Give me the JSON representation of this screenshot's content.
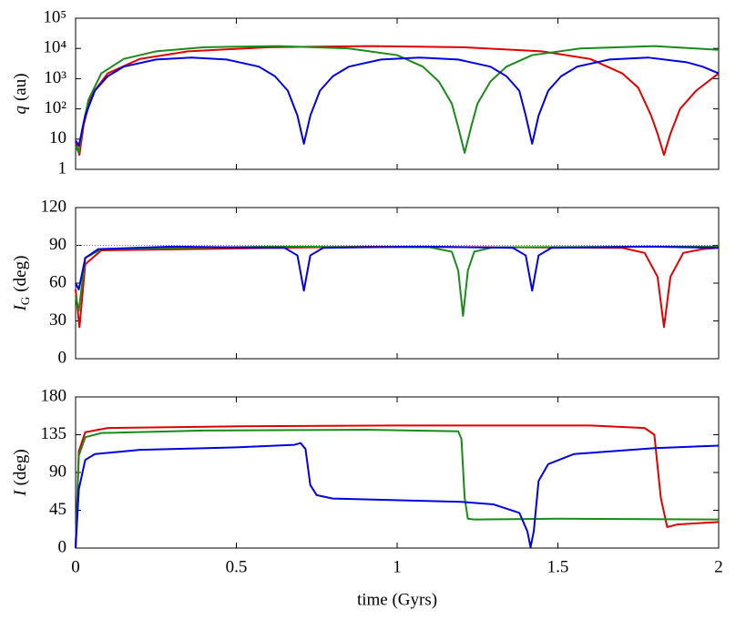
{
  "chart_data": [
    {
      "type": "line",
      "log_y": true,
      "ylabel": {
        "symbol": "q",
        "unit": "(au)"
      },
      "ylim": [
        1,
        100000
      ],
      "yticks": [
        1,
        10,
        {
          "value": 100,
          "label": "10²"
        },
        {
          "value": 1000,
          "label": "10³"
        },
        {
          "value": 10000,
          "label": "10⁴"
        },
        {
          "value": 100000,
          "label": "10⁵"
        }
      ],
      "series": [
        {
          "color": "#e00000",
          "x": [
            0,
            0.012,
            0.025,
            0.05,
            0.1,
            0.2,
            0.35,
            0.6,
            0.92,
            1.2,
            1.45,
            1.6,
            1.7,
            1.75,
            1.79,
            1.81,
            1.83,
            1.85,
            1.88,
            1.93,
            2.0
          ],
          "values": [
            8,
            3,
            30,
            300,
            1500,
            4500,
            8000,
            11000,
            12000,
            11000,
            8000,
            4500,
            1500,
            500,
            60,
            15,
            3,
            15,
            100,
            400,
            1500
          ]
        },
        {
          "color": "#1a8a1a",
          "x": [
            0,
            0.01,
            0.02,
            0.04,
            0.08,
            0.15,
            0.25,
            0.4,
            0.63,
            0.85,
            1.0,
            1.08,
            1.13,
            1.17,
            1.19,
            1.21,
            1.23,
            1.25,
            1.29,
            1.34,
            1.42,
            1.57,
            1.8,
            2.0
          ],
          "values": [
            6,
            3.5,
            20,
            200,
            1500,
            4500,
            8000,
            11000,
            12000,
            10000,
            6000,
            2500,
            800,
            150,
            25,
            3.5,
            25,
            150,
            800,
            2500,
            6000,
            10000,
            12000,
            9000
          ]
        },
        {
          "color": "#0000e0",
          "x": [
            0,
            0.01,
            0.03,
            0.06,
            0.1,
            0.15,
            0.25,
            0.36,
            0.47,
            0.57,
            0.62,
            0.66,
            0.69,
            0.71,
            0.73,
            0.76,
            0.8,
            0.85,
            0.95,
            1.07,
            1.19,
            1.29,
            1.34,
            1.38,
            1.4,
            1.42,
            1.44,
            1.47,
            1.51,
            1.56,
            1.66,
            1.78,
            1.9,
            1.95,
            2.0
          ],
          "values": [
            9,
            6,
            60,
            400,
            1200,
            2500,
            4300,
            5000,
            4300,
            2500,
            1200,
            400,
            60,
            7,
            60,
            400,
            1200,
            2500,
            4300,
            5000,
            4300,
            2500,
            1200,
            400,
            60,
            7,
            60,
            400,
            1200,
            2500,
            4300,
            5000,
            3500,
            2500,
            1500
          ]
        }
      ]
    },
    {
      "type": "line",
      "ylabel": {
        "symbol": "I",
        "subscript": "G",
        "unit": "(deg)"
      },
      "ylim": [
        0,
        120
      ],
      "yticks": [
        0,
        30,
        60,
        90,
        120
      ],
      "hline": 90,
      "series": [
        {
          "color": "#e00000",
          "x": [
            0,
            0.012,
            0.03,
            0.08,
            0.9,
            1.7,
            1.77,
            1.81,
            1.83,
            1.85,
            1.89,
            1.95,
            2.0
          ],
          "values": [
            55,
            25,
            75,
            86,
            89,
            88,
            84,
            65,
            25,
            65,
            84,
            87,
            88
          ]
        },
        {
          "color": "#1a8a1a",
          "x": [
            0,
            0.01,
            0.03,
            0.08,
            0.6,
            1.1,
            1.17,
            1.19,
            1.205,
            1.22,
            1.24,
            1.3,
            1.8,
            2.0
          ],
          "values": [
            50,
            38,
            80,
            87,
            89,
            88.5,
            85,
            70,
            34,
            70,
            85,
            88.5,
            89,
            89
          ]
        },
        {
          "color": "#0000e0",
          "x": [
            0,
            0.01,
            0.03,
            0.07,
            0.3,
            0.65,
            0.69,
            0.71,
            0.73,
            0.77,
            1.07,
            1.36,
            1.4,
            1.42,
            1.44,
            1.48,
            1.78,
            2.0
          ],
          "values": [
            60,
            55,
            80,
            87,
            89,
            88,
            82,
            54,
            82,
            88,
            89,
            88,
            82,
            54,
            82,
            88,
            89,
            88
          ]
        }
      ]
    },
    {
      "type": "line",
      "ylabel": {
        "symbol": "I",
        "unit": "(deg)"
      },
      "xlabel": "time (Gyrs)",
      "xlim": [
        0,
        2
      ],
      "xticks": [
        0,
        0.5,
        1,
        1.5,
        2
      ],
      "ylim": [
        0,
        180
      ],
      "yticks": [
        0,
        45,
        90,
        135,
        180
      ],
      "series": [
        {
          "color": "#e00000",
          "x": [
            0,
            0.01,
            0.03,
            0.1,
            0.5,
            1.0,
            1.6,
            1.77,
            1.8,
            1.82,
            1.84,
            1.87,
            1.95,
            2.0
          ],
          "values": [
            0,
            115,
            138,
            143,
            145,
            146,
            146,
            143,
            135,
            60,
            25,
            28,
            30,
            31
          ]
        },
        {
          "color": "#1a8a1a",
          "x": [
            0,
            0.01,
            0.03,
            0.08,
            0.4,
            0.9,
            1.19,
            1.2,
            1.21,
            1.22,
            1.24,
            1.5,
            2.0
          ],
          "values": [
            0,
            110,
            132,
            137,
            140,
            141,
            139,
            130,
            60,
            35,
            34,
            35,
            34
          ]
        },
        {
          "color": "#0000e0",
          "x": [
            0,
            0.01,
            0.03,
            0.06,
            0.2,
            0.5,
            0.68,
            0.7,
            0.715,
            0.73,
            0.75,
            0.8,
            1.2,
            1.3,
            1.38,
            1.405,
            1.415,
            1.425,
            1.44,
            1.47,
            1.55,
            1.8,
            2.0
          ],
          "values": [
            0,
            70,
            105,
            112,
            117,
            120,
            123,
            125,
            118,
            75,
            63,
            59,
            55,
            52,
            42,
            20,
            1,
            20,
            80,
            100,
            112,
            119,
            122
          ]
        }
      ]
    }
  ]
}
